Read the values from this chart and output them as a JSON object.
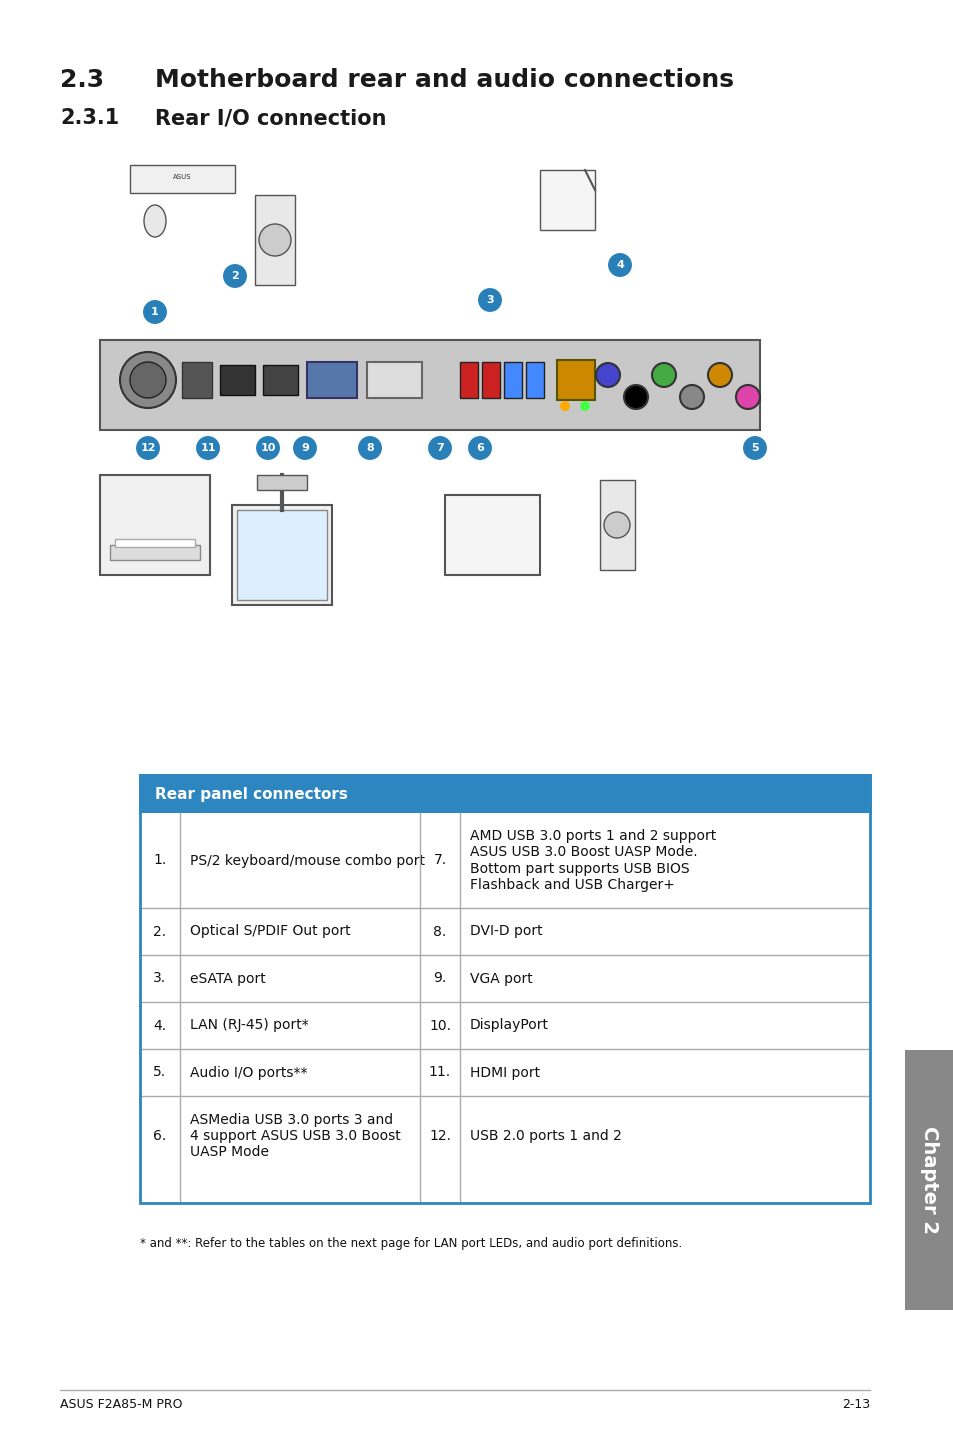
{
  "page_bg": "#ffffff",
  "heading1_num": "2.3",
  "heading1_text": "Motherboard rear and audio connections",
  "heading2_num": "2.3.1",
  "heading2_text": "Rear I/O connection",
  "table_header": "Rear panel connectors",
  "table_header_bg": "#2e86c1",
  "table_header_color": "#ffffff",
  "table_border_color": "#2e86c1",
  "table_line_color": "#aaaaaa",
  "rows": [
    {
      "left_num": "1.",
      "left_desc": "PS/2 keyboard/mouse combo port",
      "right_num": "7.",
      "right_desc": "AMD USB 3.0 ports 1 and 2 support\nASUS USB 3.0 Boost UASP Mode.\nBottom part supports USB BIOS\nFlashback and USB Charger+"
    },
    {
      "left_num": "2.",
      "left_desc": "Optical S/PDIF Out port",
      "right_num": "8.",
      "right_desc": "DVI-D port"
    },
    {
      "left_num": "3.",
      "left_desc": "eSATA port",
      "right_num": "9.",
      "right_desc": "VGA port"
    },
    {
      "left_num": "4.",
      "left_desc": "LAN (RJ-45) port*",
      "right_num": "10.",
      "right_desc": "DisplayPort"
    },
    {
      "left_num": "5.",
      "left_desc": "Audio I/O ports**",
      "right_num": "11.",
      "right_desc": "HDMI port"
    },
    {
      "left_num": "6.",
      "left_desc": "ASMedia USB 3.0 ports 3 and\n4 support ASUS USB 3.0 Boost\nUASP Mode",
      "right_num": "12.",
      "right_desc": "USB 2.0 ports 1 and 2"
    }
  ],
  "footnote": "* and **: Refer to the tables on the next page for LAN port LEDs, and audio port definitions.",
  "footer_left": "ASUS F2A85-M PRO",
  "footer_right": "2-13",
  "chapter_label": "Chapter 2",
  "chapter_tab_bg": "#888888",
  "chapter_tab_color": "#ffffff"
}
